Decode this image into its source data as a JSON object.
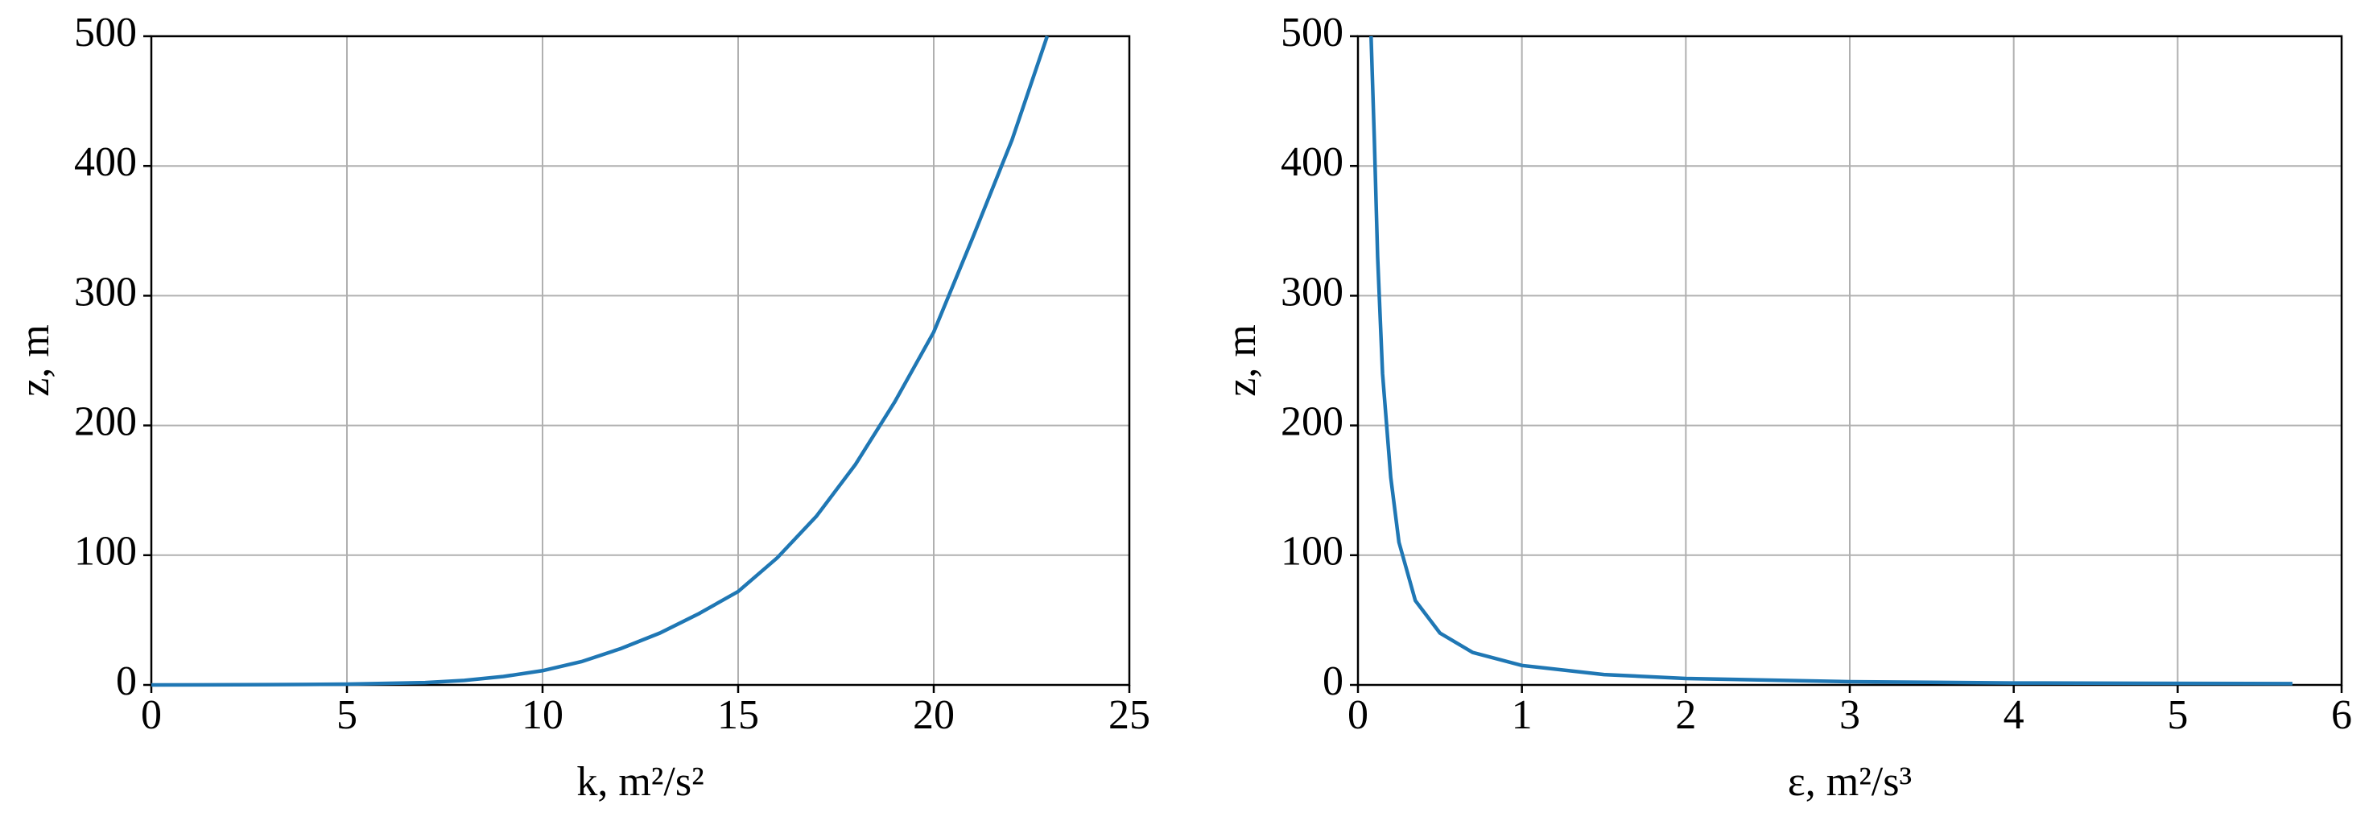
{
  "chart_data": [
    {
      "type": "line",
      "xlabel": "k, m²/s²",
      "ylabel": "z, m",
      "xlim": [
        0,
        25
      ],
      "xticks": [
        0,
        5,
        10,
        15,
        20,
        25
      ],
      "ylim": [
        0,
        500
      ],
      "yticks": [
        0,
        100,
        200,
        300,
        400,
        500
      ],
      "grid": true,
      "series": [
        {
          "color": "#1f77b4",
          "x": [
            0,
            3,
            5,
            7,
            8,
            9,
            10,
            11,
            12,
            13,
            14,
            15,
            16,
            17,
            18,
            19,
            20,
            21,
            22,
            22.9
          ],
          "values": [
            0,
            0.2,
            0.6,
            1.8,
            3.5,
            6.5,
            11,
            18,
            28,
            40,
            55,
            72,
            98,
            130,
            170,
            218,
            272,
            345,
            420,
            500
          ]
        }
      ]
    },
    {
      "type": "line",
      "xlabel": "ε, m²/s³",
      "ylabel": "z, m",
      "xlim": [
        0,
        6
      ],
      "xticks": [
        0,
        1,
        2,
        3,
        4,
        5,
        6
      ],
      "ylim": [
        0,
        500
      ],
      "yticks": [
        0,
        100,
        200,
        300,
        400,
        500
      ],
      "grid": true,
      "series": [
        {
          "color": "#1f77b4",
          "x": [
            5.7,
            4,
            3,
            2,
            1.5,
            1,
            0.7,
            0.5,
            0.35,
            0.25,
            0.2,
            0.15,
            0.12,
            0.1,
            0.08
          ],
          "values": [
            1,
            1.5,
            2.5,
            5,
            8,
            15,
            25,
            40,
            65,
            110,
            160,
            240,
            330,
            420,
            500
          ]
        }
      ]
    }
  ]
}
